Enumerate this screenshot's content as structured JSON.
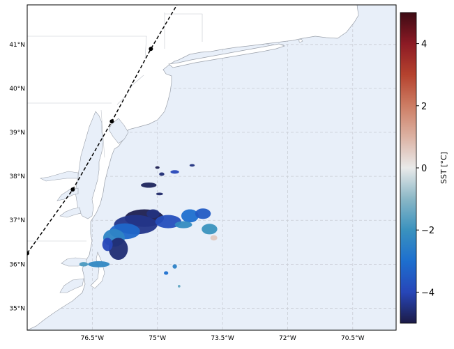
{
  "map": {
    "lon_range": [
      -78.0,
      -69.5
    ],
    "lat_range": [
      34.5,
      41.9
    ],
    "x_ticks": [
      {
        "lon": -76.5,
        "label": "76.5°W"
      },
      {
        "lon": -75.0,
        "label": "75°W"
      },
      {
        "lon": -73.5,
        "label": "73.5°W"
      },
      {
        "lon": -72.0,
        "label": "72°W"
      },
      {
        "lon": -70.5,
        "label": "70.5°W"
      }
    ],
    "y_ticks": [
      {
        "lat": 35,
        "label": "35°N"
      },
      {
        "lat": 36,
        "label": "36°N"
      },
      {
        "lat": 37,
        "label": "37°N"
      },
      {
        "lat": 38,
        "label": "38°N"
      },
      {
        "lat": 39,
        "label": "39°N"
      },
      {
        "lat": 40,
        "label": "40°N"
      },
      {
        "lat": 41,
        "label": "41°N"
      }
    ],
    "gridlines": true,
    "colors": {
      "ocean": "#e8eff9",
      "land": "#ffffff",
      "coastline": "#9aa0aa",
      "grid": "#c8ccd4",
      "track": "#000000"
    },
    "track": {
      "style": "dashed",
      "points": [
        {
          "lon": -78.0,
          "lat": 36.25
        },
        {
          "lon": -76.95,
          "lat": 37.7
        },
        {
          "lon": -76.05,
          "lat": 39.25
        },
        {
          "lon": -75.15,
          "lat": 40.9
        },
        {
          "lon": -74.55,
          "lat": 41.9
        }
      ],
      "markers": [
        {
          "lon": -78.0,
          "lat": 36.25
        },
        {
          "lon": -76.95,
          "lat": 37.7
        },
        {
          "lon": -76.05,
          "lat": 39.25
        },
        {
          "lon": -75.15,
          "lat": 40.9
        }
      ]
    },
    "sst_anomaly_patches": [
      {
        "lon": -75.3,
        "lat": 37.05,
        "rlon": 0.45,
        "rlat": 0.2,
        "value": -4.9
      },
      {
        "lon": -75.5,
        "lat": 36.9,
        "rlon": 0.5,
        "rlat": 0.22,
        "value": -4.4
      },
      {
        "lon": -74.75,
        "lat": 36.97,
        "rlon": 0.3,
        "rlat": 0.15,
        "value": -3.8
      },
      {
        "lon": -75.75,
        "lat": 36.75,
        "rlon": 0.35,
        "rlat": 0.18,
        "value": -3.2
      },
      {
        "lon": -76.0,
        "lat": 36.6,
        "rlon": 0.25,
        "rlat": 0.2,
        "value": -2.4
      },
      {
        "lon": -75.9,
        "lat": 36.35,
        "rlon": 0.22,
        "rlat": 0.25,
        "value": -4.6
      },
      {
        "lon": -76.15,
        "lat": 36.45,
        "rlon": 0.12,
        "rlat": 0.15,
        "value": -4.0
      },
      {
        "lon": -75.1,
        "lat": 37.15,
        "rlon": 0.15,
        "rlat": 0.1,
        "value": -4.5
      },
      {
        "lon": -74.25,
        "lat": 37.1,
        "rlon": 0.2,
        "rlat": 0.15,
        "value": -3.0
      },
      {
        "lon": -73.95,
        "lat": 37.15,
        "rlon": 0.18,
        "rlat": 0.12,
        "value": -3.5
      },
      {
        "lon": -74.4,
        "lat": 36.9,
        "rlon": 0.2,
        "rlat": 0.08,
        "value": -2.2
      },
      {
        "lon": -73.8,
        "lat": 36.8,
        "rlon": 0.18,
        "rlat": 0.12,
        "value": -2.0
      },
      {
        "lon": -73.7,
        "lat": 36.6,
        "rlon": 0.08,
        "rlat": 0.06,
        "value": 0.6
      },
      {
        "lon": -75.2,
        "lat": 37.8,
        "rlon": 0.18,
        "rlat": 0.06,
        "value": -4.8
      },
      {
        "lon": -74.9,
        "lat": 38.05,
        "rlon": 0.06,
        "rlat": 0.04,
        "value": -4.6
      },
      {
        "lon": -74.6,
        "lat": 38.1,
        "rlon": 0.1,
        "rlat": 0.04,
        "value": -4.0
      },
      {
        "lon": -74.2,
        "lat": 38.25,
        "rlon": 0.06,
        "rlat": 0.03,
        "value": -4.5
      },
      {
        "lon": -75.0,
        "lat": 38.2,
        "rlon": 0.05,
        "rlat": 0.03,
        "value": -4.9
      },
      {
        "lon": -74.95,
        "lat": 37.6,
        "rlon": 0.08,
        "rlat": 0.03,
        "value": -4.7
      },
      {
        "lon": -76.35,
        "lat": 36.0,
        "rlon": 0.25,
        "rlat": 0.07,
        "value": -2.3
      },
      {
        "lon": -76.7,
        "lat": 36.0,
        "rlon": 0.1,
        "rlat": 0.05,
        "value": -1.8
      },
      {
        "lon": -74.6,
        "lat": 35.95,
        "rlon": 0.05,
        "rlat": 0.05,
        "value": -2.5
      },
      {
        "lon": -74.8,
        "lat": 35.8,
        "rlon": 0.05,
        "rlat": 0.04,
        "value": -3.0
      },
      {
        "lon": -74.5,
        "lat": 35.5,
        "rlon": 0.03,
        "rlat": 0.03,
        "value": -1.5
      }
    ]
  },
  "colorbar": {
    "label": "SST [°C]",
    "range": [
      -5,
      5
    ],
    "ticks": [
      {
        "value": 4,
        "label": "4"
      },
      {
        "value": 2,
        "label": "2"
      },
      {
        "value": 0,
        "label": "0"
      },
      {
        "value": -2,
        "label": "−2"
      },
      {
        "value": -4,
        "label": "−4"
      }
    ],
    "stops": [
      {
        "v": -5,
        "c": "#1c1b46"
      },
      {
        "v": -4,
        "c": "#2746b8"
      },
      {
        "v": -3,
        "c": "#1d6fcf"
      },
      {
        "v": -2,
        "c": "#3a92be"
      },
      {
        "v": -1,
        "c": "#8ab7c6"
      },
      {
        "v": 0,
        "c": "#e9eaea"
      },
      {
        "v": 1,
        "c": "#dcb2a3"
      },
      {
        "v": 2,
        "c": "#cd7d64"
      },
      {
        "v": 3,
        "c": "#b5422e"
      },
      {
        "v": 4,
        "c": "#8c1a24"
      },
      {
        "v": 5,
        "c": "#3d0b14"
      }
    ]
  }
}
